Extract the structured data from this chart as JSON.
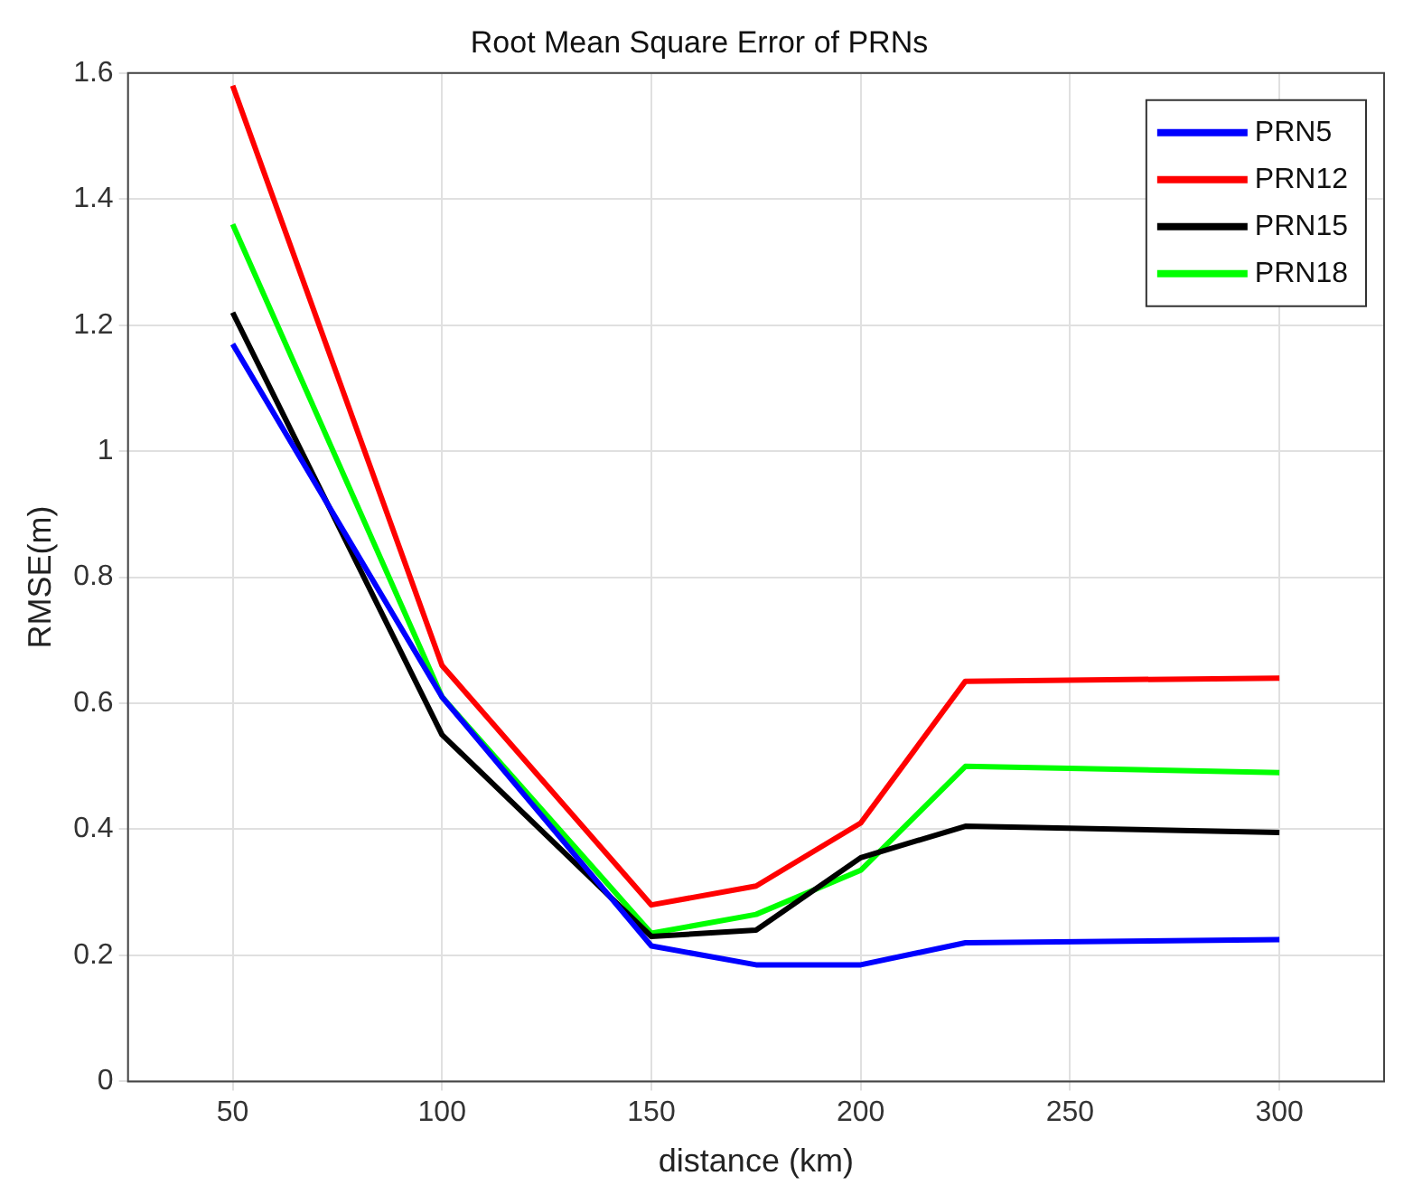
{
  "chart_data": {
    "type": "line",
    "title": "Root Mean Square Error of PRNs",
    "xlabel": "distance (km)",
    "ylabel": "RMSE(m)",
    "x": [
      50,
      100,
      150,
      175,
      200,
      225,
      300
    ],
    "series": [
      {
        "name": "PRN5",
        "color": "#0000ff",
        "values": [
          1.17,
          0.61,
          0.215,
          0.185,
          0.185,
          0.22,
          0.225
        ]
      },
      {
        "name": "PRN12",
        "color": "#ff0000",
        "values": [
          1.58,
          0.66,
          0.28,
          0.31,
          0.41,
          0.635,
          0.64
        ]
      },
      {
        "name": "PRN15",
        "color": "#000000",
        "values": [
          1.22,
          0.55,
          0.23,
          0.24,
          0.355,
          0.405,
          0.395
        ]
      },
      {
        "name": "PRN18",
        "color": "#00ff00",
        "values": [
          1.36,
          0.61,
          0.235,
          0.265,
          0.335,
          0.5,
          0.49
        ]
      }
    ],
    "xlim": [
      25,
      325
    ],
    "xticks": [
      50,
      100,
      150,
      200,
      250,
      300
    ],
    "ylim": [
      0,
      1.6
    ],
    "yticks": [
      0,
      0.2,
      0.4,
      0.6,
      0.8,
      1,
      1.2,
      1.4,
      1.6
    ],
    "grid": true,
    "legend": "top right",
    "marker": "none",
    "line_style": "solid"
  }
}
